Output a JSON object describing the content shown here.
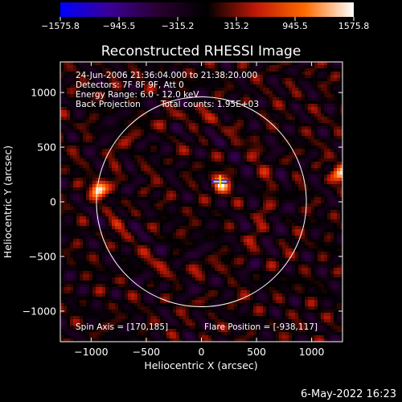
{
  "chart_data": {
    "type": "heatmap",
    "title": "Reconstructed RHESSI Image",
    "xlabel": "Heliocentric X (arcsec)",
    "ylabel": "Heliocentric Y (arcsec)",
    "xlim": [
      -1280,
      1280
    ],
    "ylim": [
      -1280,
      1280
    ],
    "xticks": [
      -1000,
      -500,
      0,
      500,
      1000
    ],
    "yticks": [
      -1000,
      -500,
      0,
      500,
      1000
    ],
    "colorbar": {
      "min": -1575.8,
      "max": 1575.8,
      "tick_values": [
        -1575.8,
        -945.5,
        -315.2,
        315.2,
        945.5,
        1575.8
      ],
      "tick_labels": [
        "−1575.8",
        "−945.5",
        "−315.2",
        "315.2",
        "945.5",
        "1575.8"
      ],
      "colors": [
        "#0000ff",
        "#3a0096",
        "#2a0030",
        "#000000",
        "#c01808",
        "#ff6a00",
        "#ffffff"
      ]
    },
    "solar_limb_radius_arcsec": 952,
    "solar_limb_color": "#ffffff",
    "annotations": {
      "time_range": "24-Jun-2006 21:36:04.000 to 21:38:20.000",
      "detectors": "Detectors: 7F 8F 9F, Att 0",
      "energy_range": "Energy Range: 6.0 - 12.0 keV",
      "method": "Back Projection",
      "total_counts": "Total counts: 1.95E+03",
      "spin_axis": "Spin Axis = [170,185]",
      "flare_position": "Flare Position = [-938,117]"
    },
    "flare_marker": {
      "x": 170,
      "y": 185,
      "color": "#ffd700"
    },
    "bright_sources": [
      {
        "x": -938,
        "y": 117,
        "value": 1575
      },
      {
        "x": 175,
        "y": 170,
        "value": 1400
      },
      {
        "x": 1270,
        "y": 250,
        "value": 1300
      }
    ]
  },
  "footer": {
    "date": "6-May-2022 16:23"
  }
}
